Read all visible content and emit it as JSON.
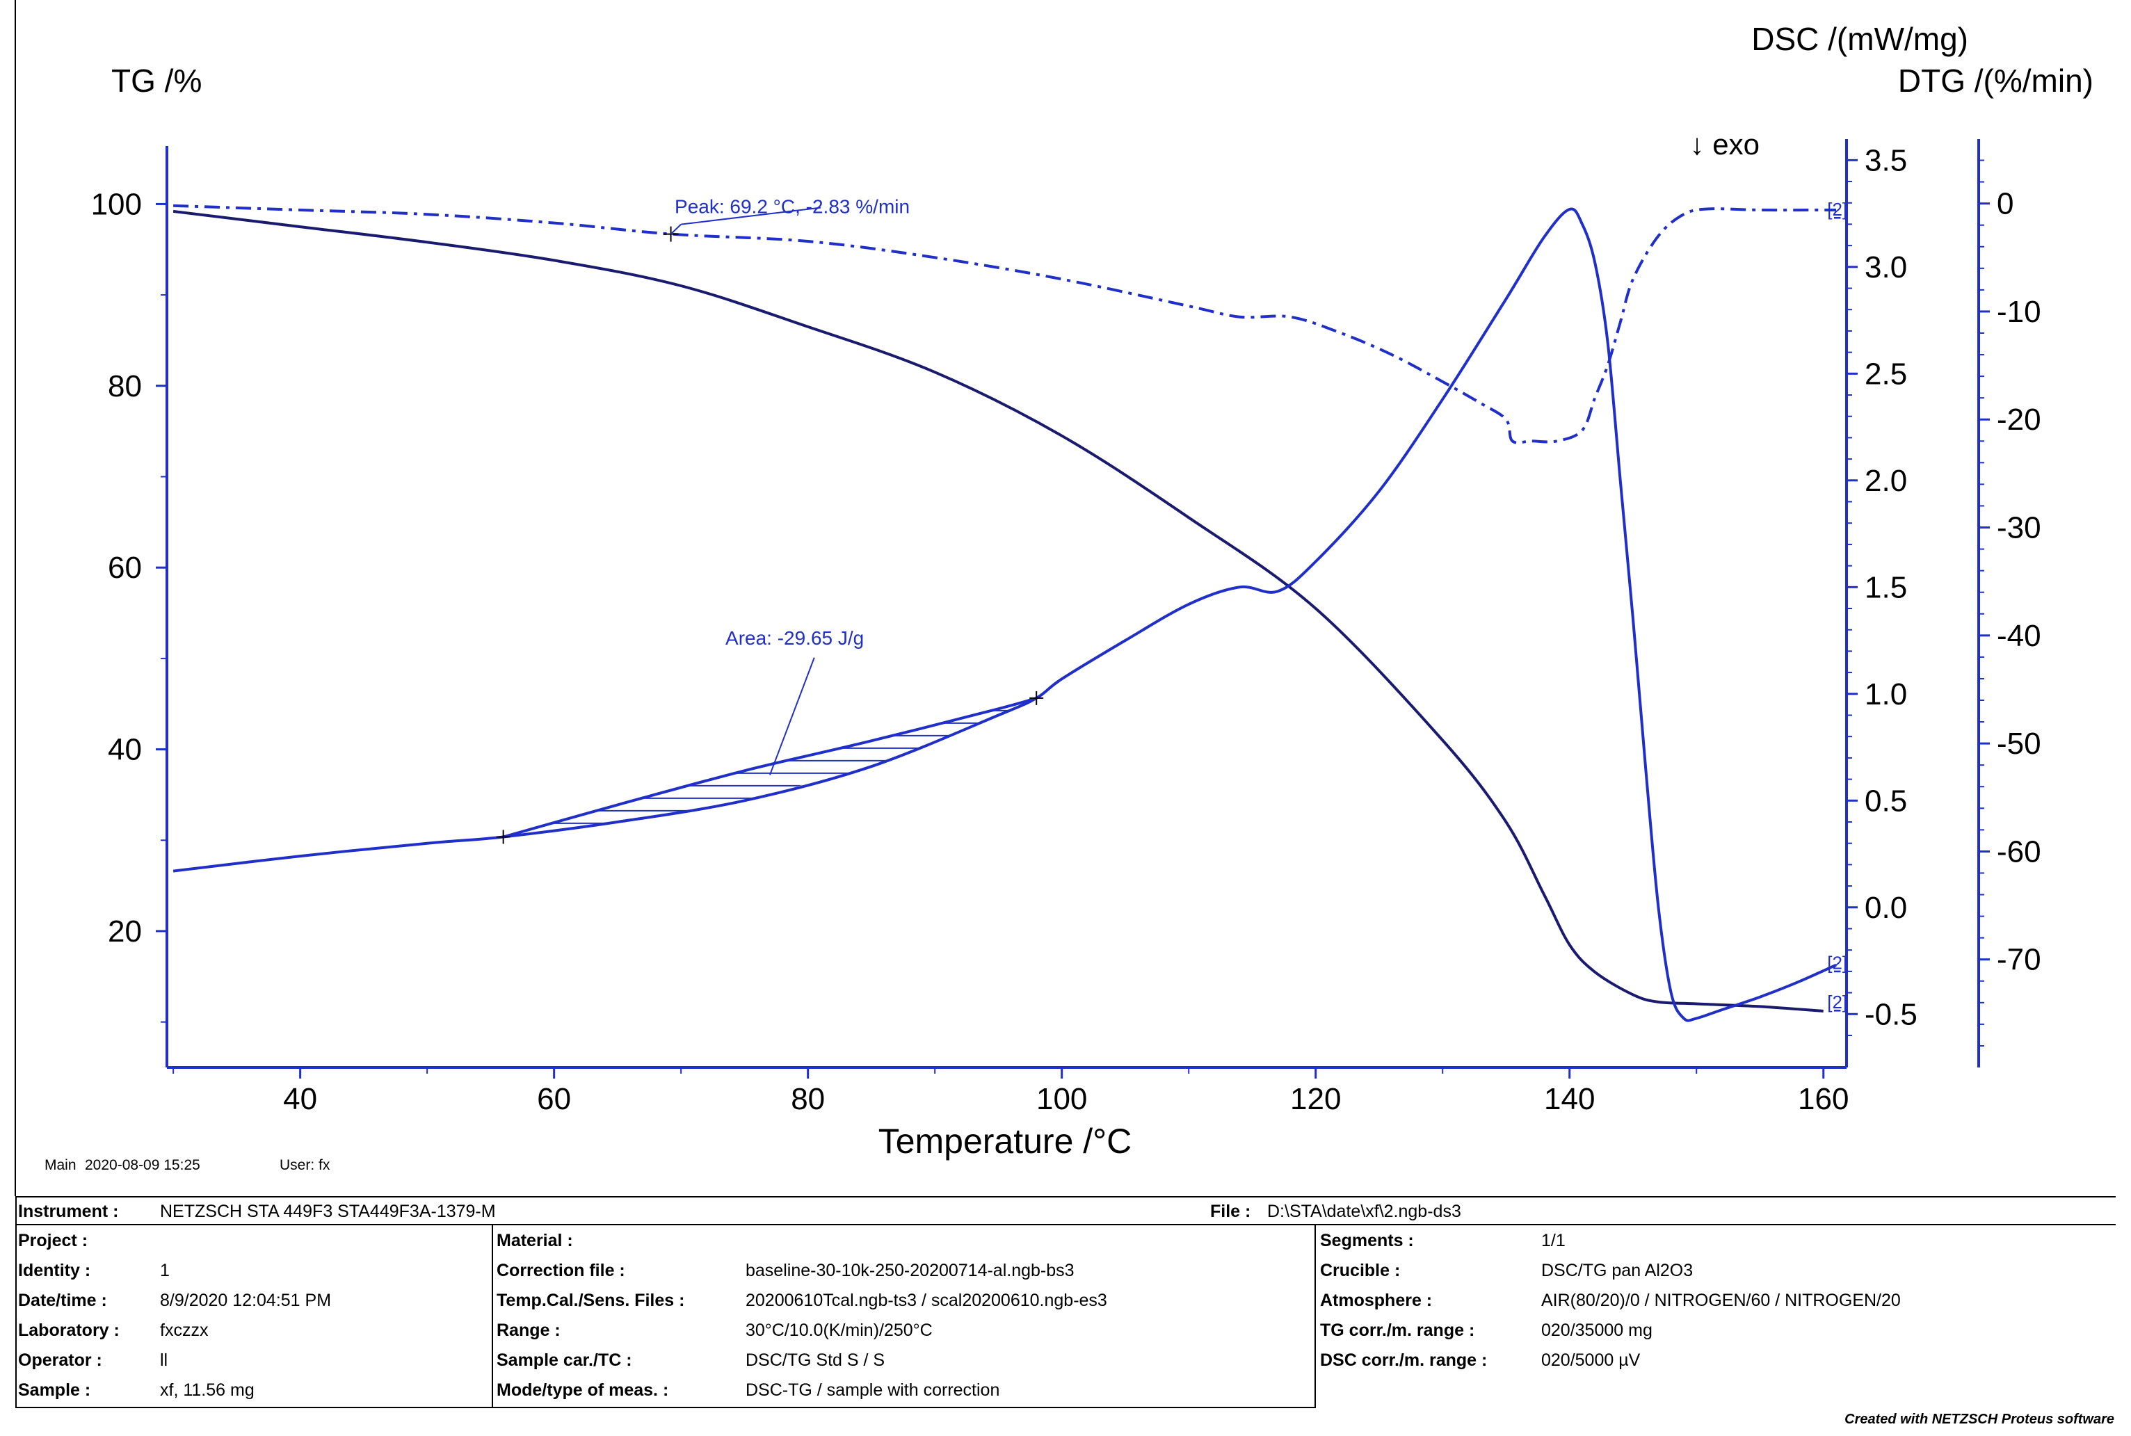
{
  "chart_data": {
    "type": "line",
    "xlabel": "Temperature /°C",
    "xlim": [
      29,
      162
    ],
    "x_ticks": [
      40,
      60,
      80,
      100,
      120,
      140,
      160
    ],
    "axes": {
      "tg": {
        "label": "TG /%",
        "lim": [
          5,
          106
        ],
        "ticks": [
          20,
          40,
          60,
          80,
          100
        ]
      },
      "dsc": {
        "label": "DSC /(mW/mg)",
        "lim": [
          -0.75,
          3.55
        ],
        "ticks": [
          -0.5,
          0.0,
          0.5,
          1.0,
          1.5,
          2.0,
          2.5,
          3.0,
          3.5
        ],
        "tick_labels": [
          "-0.5",
          "0.0",
          "0.5",
          "1.0",
          "1.5",
          "2.0",
          "2.5",
          "3.0",
          "3.5"
        ],
        "note": "↓ exo"
      },
      "dtg": {
        "label": "DTG /(%/min)",
        "lim": [
          -80,
          5
        ],
        "ticks": [
          0,
          -10,
          -20,
          -30,
          -40,
          -50,
          -60,
          -70
        ],
        "tick_labels": [
          "0",
          "-10",
          "-20",
          "-30",
          "-40",
          "-50",
          "-60",
          "-70"
        ]
      }
    },
    "series": [
      {
        "name": "TG",
        "axis": "tg",
        "style": "solid",
        "color": "#1a1a6e",
        "x": [
          30,
          40,
          50,
          60,
          70,
          80,
          90,
          100,
          110,
          120,
          130,
          135,
          138,
          140,
          142,
          145,
          147,
          150,
          155,
          160
        ],
        "values": [
          99.2,
          97.5,
          95.8,
          93.8,
          91.0,
          86.5,
          81.5,
          74.5,
          65.5,
          55.5,
          41.0,
          32.0,
          24.0,
          18.5,
          15.5,
          13.0,
          12.2,
          12.0,
          11.7,
          11.2
        ]
      },
      {
        "name": "DSC",
        "axis": "dsc",
        "style": "solid",
        "color": "#1f2fc8",
        "x": [
          30,
          40,
          50,
          56,
          65,
          75,
          85,
          95,
          98,
          100,
          105,
          110,
          114,
          117,
          120,
          125,
          130,
          135,
          138,
          140,
          141,
          142,
          143,
          144,
          145,
          146,
          147,
          148,
          149,
          150,
          152,
          155,
          158,
          161
        ],
        "values": [
          0.17,
          0.24,
          0.3,
          0.33,
          0.4,
          0.5,
          0.66,
          0.9,
          0.98,
          1.07,
          1.25,
          1.42,
          1.5,
          1.48,
          1.62,
          1.95,
          2.38,
          2.85,
          3.14,
          3.27,
          3.2,
          3.02,
          2.65,
          2.0,
          1.35,
          0.65,
          0.0,
          -0.4,
          -0.52,
          -0.52,
          -0.48,
          -0.42,
          -0.35,
          -0.27
        ]
      },
      {
        "name": "DSC baseline",
        "axis": "dsc",
        "style": "solid",
        "color": "#1f2fc8",
        "x": [
          56,
          65,
          75,
          85,
          95,
          98
        ],
        "values": [
          0.33,
          0.48,
          0.64,
          0.78,
          0.93,
          0.98
        ]
      },
      {
        "name": "DTG",
        "axis": "dtg",
        "style": "dashdot",
        "color": "#1f2fc8",
        "x": [
          30,
          40,
          50,
          60,
          69.2,
          80,
          90,
          100,
          110,
          114,
          118,
          122,
          126,
          130,
          133,
          135,
          135.5,
          137,
          139,
          141,
          142,
          143,
          144,
          145,
          147,
          149,
          151,
          155,
          161
        ],
        "values": [
          -0.2,
          -0.6,
          -1.0,
          -1.8,
          -2.83,
          -3.5,
          -5.0,
          -7.0,
          -9.5,
          -10.5,
          -10.5,
          -12.0,
          -14.0,
          -16.5,
          -18.5,
          -20.0,
          -22.0,
          -22.0,
          -22.0,
          -21.0,
          -18.0,
          -15.0,
          -11.0,
          -7.0,
          -3.0,
          -1.0,
          -0.5,
          -0.6,
          -0.6
        ]
      }
    ],
    "annotations": {
      "peak": {
        "text": "Peak: 69.2 °C, -2.83 %/min",
        "x": 69.2,
        "value": -2.83
      },
      "area": {
        "text": "Area: -29.65 J/g",
        "x_start": 56,
        "x_end": 98
      },
      "segment_tag": "[2]"
    }
  },
  "info": {
    "main": "Main",
    "date": "2020-08-09 15:25",
    "user": "User: fx"
  },
  "footer": {
    "instrument_label": "Instrument :",
    "instrument": "NETZSCH STA 449F3 STA449F3A-1379-M",
    "file_label": "File :",
    "file": "D:\\STA\\date\\xf\\2.ngb-ds3",
    "project_label": "Project :",
    "project": "",
    "identity_label": "Identity :",
    "identity": "1",
    "datetime_label": "Date/time :",
    "datetime": "8/9/2020 12:04:51 PM",
    "laboratory_label": "Laboratory :",
    "laboratory": "fxczzx",
    "operator_label": "Operator :",
    "operator": "ll",
    "sample_label": "Sample :",
    "sample": "xf, 11.56 mg",
    "material_label": "Material :",
    "material": "",
    "correction_label": "Correction file :",
    "correction": "baseline-30-10k-250-20200714-al.ngb-bs3",
    "tempcal_label": "Temp.Cal./Sens. Files :",
    "tempcal": "20200610Tcal.ngb-ts3 / scal20200610.ngb-es3",
    "range_label": "Range :",
    "range": "30°C/10.0(K/min)/250°C",
    "samplecar_label": "Sample car./TC :",
    "samplecar": "DSC/TG Std S / S",
    "mode_label": "Mode/type of meas. :",
    "mode": "DSC-TG / sample with correction",
    "segments_label": "Segments :",
    "segments": "1/1",
    "crucible_label": "Crucible :",
    "crucible": "DSC/TG pan Al2O3",
    "atmosphere_label": "Atmosphere :",
    "atmosphere": "AIR(80/20)/0 / NITROGEN/60 / NITROGEN/20",
    "tgcorr_label": "TG corr./m. range :",
    "tgcorr": "020/35000 mg",
    "dsccorr_label": "DSC corr./m. range :",
    "dsccorr": "020/5000 µV",
    "credit": "Created with NETZSCH Proteus software"
  }
}
